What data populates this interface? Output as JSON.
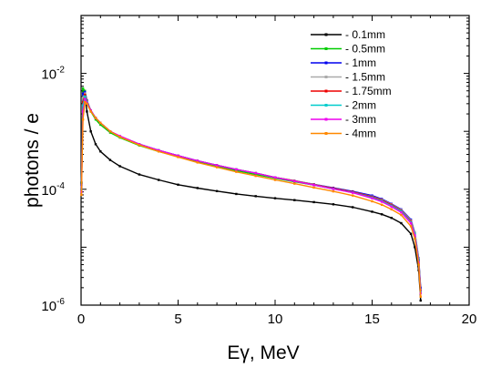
{
  "chart_data": {
    "type": "line",
    "title": "",
    "xlabel": "Eγ, MeV",
    "ylabel": "photons / e",
    "xlim": [
      0,
      20
    ],
    "ylim": [
      1e-06,
      0.1
    ],
    "y_scale": "log",
    "grid": false,
    "legend_placement": "top-right",
    "x_ticks": [
      {
        "value": 0,
        "label": "0"
      },
      {
        "value": 5,
        "label": "5"
      },
      {
        "value": 10,
        "label": "10"
      },
      {
        "value": 15,
        "label": "15"
      },
      {
        "value": 20,
        "label": "20"
      }
    ],
    "y_ticks": [
      {
        "value": 1e-06,
        "base": "10",
        "exp": "-6"
      },
      {
        "value": 0.0001,
        "base": "10",
        "exp": "-4"
      },
      {
        "value": 0.01,
        "base": "10",
        "exp": "-2"
      }
    ],
    "x": [
      0.02,
      0.1,
      0.2,
      0.3,
      0.5,
      0.75,
      1,
      1.5,
      2,
      3,
      4,
      5,
      6,
      7,
      8,
      9,
      10,
      11,
      12,
      13,
      14,
      15,
      15.5,
      16,
      16.5,
      17,
      17.2,
      17.4,
      17.5
    ],
    "series": [
      {
        "name": "- 0.1mm",
        "color": "#000000",
        "values": [
          0.00013,
          0.005,
          0.0045,
          0.0022,
          0.001,
          0.0006,
          0.00045,
          0.00032,
          0.00025,
          0.00018,
          0.000145,
          0.00012,
          0.000105,
          9.3e-05,
          8.3e-05,
          7.6e-05,
          7e-05,
          6.5e-05,
          6e-05,
          5.5e-05,
          4.9e-05,
          4.1e-05,
          3.7e-05,
          3.2e-05,
          2.6e-05,
          1.7e-05,
          1e-05,
          4e-06,
          1.2e-06
        ]
      },
      {
        "name": "- 0.5mm",
        "color": "#00cc00",
        "values": [
          0.00013,
          0.0055,
          0.005,
          0.0034,
          0.0022,
          0.0016,
          0.0013,
          0.00095,
          0.00078,
          0.00057,
          0.00045,
          0.00037,
          0.0003,
          0.00025,
          0.00021,
          0.00018,
          0.000155,
          0.000135,
          0.000118,
          0.000102,
          8.8e-05,
          7.3e-05,
          6.4e-05,
          5.3e-05,
          4.2e-05,
          2.8e-05,
          1.7e-05,
          6e-06,
          1.8e-06
        ]
      },
      {
        "name": "- 1mm",
        "color": "#0000ee",
        "values": [
          0.00012,
          0.0045,
          0.0048,
          0.0034,
          0.0023,
          0.0017,
          0.0014,
          0.001,
          0.00082,
          0.0006,
          0.00047,
          0.00038,
          0.00031,
          0.00026,
          0.00022,
          0.00019,
          0.00016,
          0.00014,
          0.000122,
          0.000106,
          9.2e-05,
          7.8e-05,
          6.8e-05,
          5.6e-05,
          4.5e-05,
          3e-05,
          1.8e-05,
          6.5e-06,
          2e-06
        ]
      },
      {
        "name": "- 1.5mm",
        "color": "#aaaaaa",
        "values": [
          0.00011,
          0.0038,
          0.0045,
          0.0033,
          0.0023,
          0.0017,
          0.0014,
          0.001,
          0.00082,
          0.0006,
          0.00047,
          0.00038,
          0.00031,
          0.00026,
          0.00022,
          0.00019,
          0.00016,
          0.00014,
          0.000121,
          0.000104,
          9e-05,
          7.5e-05,
          6.6e-05,
          5.5e-05,
          4.4e-05,
          2.9e-05,
          1.8e-05,
          6.5e-06,
          1.8e-06
        ]
      },
      {
        "name": "- 1.75mm",
        "color": "#ee0000",
        "values": [
          0.0001,
          0.0032,
          0.0043,
          0.0033,
          0.0023,
          0.0017,
          0.0014,
          0.001,
          0.00082,
          0.0006,
          0.00047,
          0.00038,
          0.00031,
          0.00026,
          0.00022,
          0.00019,
          0.00016,
          0.00014,
          0.00012,
          0.000104,
          9e-05,
          7.4e-05,
          6.5e-05,
          5.4e-05,
          4.3e-05,
          2.8e-05,
          1.7e-05,
          6e-06,
          1.8e-06
        ]
      },
      {
        "name": "- 2mm",
        "color": "#00cccc",
        "values": [
          0.0001,
          0.0028,
          0.004,
          0.0032,
          0.0023,
          0.0017,
          0.0014,
          0.001,
          0.00082,
          0.0006,
          0.00047,
          0.00038,
          0.00031,
          0.00026,
          0.00022,
          0.00019,
          0.00016,
          0.000138,
          0.000118,
          0.000102,
          8.8e-05,
          7.2e-05,
          6.3e-05,
          5.2e-05,
          4.2e-05,
          2.7e-05,
          1.7e-05,
          6e-06,
          1.7e-06
        ]
      },
      {
        "name": "- 3mm",
        "color": "#ee00ee",
        "values": [
          9e-05,
          0.0022,
          0.0036,
          0.0031,
          0.0023,
          0.0017,
          0.0014,
          0.001,
          0.00083,
          0.0006,
          0.00047,
          0.00038,
          0.00031,
          0.00026,
          0.00022,
          0.00019,
          0.00016,
          0.000138,
          0.000118,
          0.000101,
          8.7e-05,
          7e-05,
          6.1e-05,
          5e-05,
          4e-05,
          2.6e-05,
          1.6e-05,
          5.5e-06,
          1.6e-06
        ]
      },
      {
        "name": "- 4mm",
        "color": "#ff8800",
        "values": [
          8e-05,
          0.0016,
          0.0032,
          0.003,
          0.0022,
          0.0017,
          0.0014,
          0.001,
          0.0008,
          0.00058,
          0.00045,
          0.00036,
          0.00029,
          0.00024,
          0.0002,
          0.00017,
          0.000145,
          0.000125,
          0.000107,
          9.2e-05,
          7.8e-05,
          6.2e-05,
          5.4e-05,
          4.5e-05,
          3.6e-05,
          2.3e-05,
          1.4e-05,
          5e-06,
          1.4e-06
        ]
      }
    ]
  }
}
